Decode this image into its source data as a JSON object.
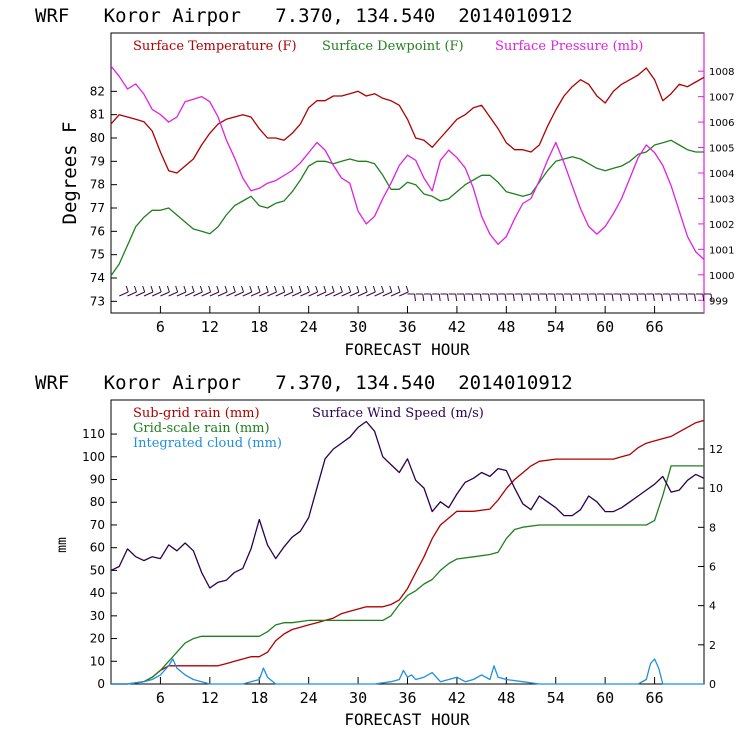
{
  "chart_data": [
    {
      "type": "line",
      "title": "WRF   Koror Airpor   7.370, 134.540  2014010912",
      "xlabel": "FORECAST HOUR",
      "ylabel": "Degrees F",
      "xlim": [
        0,
        72
      ],
      "ylim": [
        72.5,
        84.5
      ],
      "y2lim": [
        998.5,
        1009.5
      ],
      "x_ticks": [
        "6",
        "12",
        "18",
        "24",
        "30",
        "36",
        "42",
        "48",
        "54",
        "60",
        "66"
      ],
      "y_ticks": [
        "73",
        "74",
        "75",
        "76",
        "77",
        "78",
        "79",
        "80",
        "81",
        "82"
      ],
      "y2_ticks": [
        "999",
        "1000",
        "1001",
        "1002",
        "1003",
        "1004",
        "1005",
        "1006",
        "1007",
        "1008"
      ],
      "series": [
        {
          "name": "Surface Temperature (F)",
          "color": "#b00000",
          "axis": "left",
          "x": [
            0,
            1,
            2,
            3,
            4,
            5,
            6,
            7,
            8,
            9,
            10,
            11,
            12,
            13,
            14,
            15,
            16,
            17,
            18,
            19,
            20,
            21,
            22,
            23,
            24,
            25,
            26,
            27,
            28,
            29,
            30,
            31,
            32,
            33,
            34,
            35,
            36,
            37,
            38,
            39,
            40,
            41,
            42,
            43,
            44,
            45,
            46,
            47,
            48,
            49,
            50,
            51,
            52,
            53,
            54,
            55,
            56,
            57,
            58,
            59,
            60,
            61,
            62,
            63,
            64,
            65,
            66,
            67,
            68,
            69,
            70,
            71,
            72
          ],
          "y": [
            80.6,
            81.0,
            80.9,
            80.8,
            80.7,
            80.3,
            79.4,
            78.6,
            78.5,
            78.8,
            79.1,
            79.7,
            80.2,
            80.6,
            80.8,
            80.9,
            81.0,
            80.9,
            80.4,
            80.0,
            80.0,
            79.9,
            80.2,
            80.6,
            81.3,
            81.6,
            81.6,
            81.8,
            81.8,
            81.9,
            82.0,
            81.8,
            81.9,
            81.7,
            81.6,
            81.4,
            80.8,
            80.0,
            79.9,
            79.6,
            80.0,
            80.4,
            80.8,
            81.0,
            81.3,
            81.4,
            80.9,
            80.4,
            79.8,
            79.5,
            79.5,
            79.4,
            79.7,
            80.5,
            81.2,
            81.8,
            82.2,
            82.5,
            82.3,
            81.8,
            81.5,
            82.0,
            82.3,
            82.5,
            82.7,
            83.0,
            82.5,
            81.6,
            81.9,
            82.3,
            82.2,
            82.4,
            82.6
          ]
        },
        {
          "name": "Surface Dewpoint (F)",
          "color": "#208020",
          "axis": "left",
          "x": [
            0,
            1,
            2,
            3,
            4,
            5,
            6,
            7,
            8,
            9,
            10,
            11,
            12,
            13,
            14,
            15,
            16,
            17,
            18,
            19,
            20,
            21,
            22,
            23,
            24,
            25,
            26,
            27,
            28,
            29,
            30,
            31,
            32,
            33,
            34,
            35,
            36,
            37,
            38,
            39,
            40,
            41,
            42,
            43,
            44,
            45,
            46,
            47,
            48,
            49,
            50,
            51,
            52,
            53,
            54,
            55,
            56,
            57,
            58,
            59,
            60,
            61,
            62,
            63,
            64,
            65,
            66,
            67,
            68,
            69,
            70,
            71,
            72
          ],
          "y": [
            74.1,
            74.6,
            75.4,
            76.2,
            76.6,
            76.9,
            76.9,
            77.0,
            76.7,
            76.4,
            76.1,
            76.0,
            75.9,
            76.2,
            76.7,
            77.1,
            77.3,
            77.5,
            77.1,
            77.0,
            77.2,
            77.3,
            77.7,
            78.2,
            78.8,
            79.0,
            79.0,
            78.9,
            79.0,
            79.1,
            79.0,
            79.0,
            78.9,
            78.4,
            77.8,
            77.8,
            78.1,
            78.0,
            77.6,
            77.5,
            77.3,
            77.4,
            77.7,
            78.0,
            78.2,
            78.4,
            78.4,
            78.1,
            77.7,
            77.6,
            77.5,
            77.6,
            78.1,
            78.6,
            79.0,
            79.1,
            79.2,
            79.1,
            78.9,
            78.7,
            78.6,
            78.7,
            78.8,
            79.0,
            79.3,
            79.4,
            79.7,
            79.8,
            79.9,
            79.7,
            79.5,
            79.4,
            79.4
          ]
        },
        {
          "name": "Surface Pressure (mb)",
          "color": "#e020e0",
          "axis": "right",
          "x": [
            0,
            1,
            2,
            3,
            4,
            5,
            6,
            7,
            8,
            9,
            10,
            11,
            12,
            13,
            14,
            15,
            16,
            17,
            18,
            19,
            20,
            21,
            22,
            23,
            24,
            25,
            26,
            27,
            28,
            29,
            30,
            31,
            32,
            33,
            34,
            35,
            36,
            37,
            38,
            39,
            40,
            41,
            42,
            43,
            44,
            45,
            46,
            47,
            48,
            49,
            50,
            51,
            52,
            53,
            54,
            55,
            56,
            57,
            58,
            59,
            60,
            61,
            62,
            63,
            64,
            65,
            66,
            67,
            68,
            69,
            70,
            71,
            72
          ],
          "y": [
            1008.2,
            1007.8,
            1007.3,
            1007.5,
            1007.1,
            1006.5,
            1006.3,
            1006.0,
            1006.2,
            1006.8,
            1006.9,
            1007.0,
            1006.8,
            1006.2,
            1005.3,
            1004.6,
            1003.8,
            1003.3,
            1003.4,
            1003.6,
            1003.7,
            1003.9,
            1004.1,
            1004.4,
            1004.8,
            1005.2,
            1004.9,
            1004.3,
            1003.8,
            1003.6,
            1002.5,
            1002.0,
            1002.3,
            1003.0,
            1003.6,
            1004.3,
            1004.7,
            1004.5,
            1003.8,
            1003.3,
            1004.5,
            1004.9,
            1004.6,
            1004.2,
            1003.4,
            1002.3,
            1001.6,
            1001.2,
            1001.5,
            1002.2,
            1002.8,
            1003.0,
            1003.7,
            1004.5,
            1005.2,
            1004.4,
            1003.5,
            1002.6,
            1001.9,
            1001.6,
            1001.9,
            1002.4,
            1003.0,
            1003.8,
            1004.6,
            1005.1,
            1004.8,
            1004.3,
            1003.5,
            1002.5,
            1001.5,
            1000.9,
            1000.6
          ]
        }
      ]
    },
    {
      "type": "line",
      "title": "WRF   Koror Airpor   7.370, 134.540  2014010912",
      "xlabel": "FORECAST HOUR",
      "ylabel": "mm",
      "xlim": [
        0,
        72
      ],
      "ylim": [
        0,
        125
      ],
      "y2lim": [
        0,
        14.5
      ],
      "x_ticks": [
        "6",
        "12",
        "18",
        "24",
        "30",
        "36",
        "42",
        "48",
        "54",
        "60",
        "66"
      ],
      "y_ticks": [
        "0",
        "10",
        "20",
        "30",
        "40",
        "50",
        "60",
        "70",
        "80",
        "90",
        "100",
        "110"
      ],
      "y2_ticks": [
        "0",
        "2",
        "4",
        "6",
        "8",
        "10",
        "12"
      ],
      "series": [
        {
          "name": "Sub-grid rain (mm)",
          "color": "#b00000",
          "axis": "left",
          "x": [
            0,
            2,
            4,
            5,
            6,
            7,
            8,
            10,
            12,
            13,
            14,
            15,
            16,
            17,
            18,
            19,
            20,
            21,
            22,
            23,
            24,
            25,
            26,
            27,
            28,
            29,
            30,
            31,
            32,
            33,
            34,
            35,
            36,
            37,
            38,
            39,
            40,
            41,
            42,
            44,
            46,
            47,
            48,
            49,
            50,
            51,
            52,
            54,
            56,
            58,
            60,
            61,
            62,
            63,
            64,
            65,
            66,
            67,
            68,
            69,
            70,
            71,
            72
          ],
          "y": [
            0,
            0,
            1,
            3,
            6,
            8,
            8,
            8,
            8,
            8,
            9,
            10,
            11,
            12,
            12,
            14,
            19,
            22,
            24,
            25,
            26,
            27,
            28,
            29,
            31,
            32,
            33,
            34,
            34,
            34,
            35,
            37,
            42,
            49,
            56,
            64,
            70,
            73,
            76,
            76,
            77,
            81,
            86,
            90,
            93,
            96,
            98,
            99,
            99,
            99,
            99,
            99,
            100,
            101,
            104,
            106,
            107,
            108,
            109,
            111,
            113,
            115,
            116
          ]
        },
        {
          "name": "Grid-scale rain (mm)",
          "color": "#208020",
          "axis": "left",
          "x": [
            0,
            2,
            4,
            5,
            6,
            7,
            8,
            9,
            10,
            11,
            12,
            14,
            16,
            18,
            19,
            20,
            21,
            22,
            24,
            26,
            28,
            30,
            32,
            33,
            34,
            35,
            36,
            37,
            38,
            39,
            40,
            41,
            42,
            44,
            46,
            47,
            48,
            49,
            50,
            52,
            54,
            56,
            58,
            60,
            62,
            63,
            64,
            65,
            66,
            67,
            68,
            69,
            70,
            72
          ],
          "y": [
            0,
            0,
            1,
            3,
            6,
            10,
            14,
            18,
            20,
            21,
            21,
            21,
            21,
            21,
            23,
            26,
            27,
            27,
            28,
            28,
            28,
            28,
            28,
            28,
            30,
            35,
            39,
            41,
            44,
            46,
            50,
            53,
            55,
            56,
            57,
            58,
            64,
            68,
            69,
            70,
            70,
            70,
            70,
            70,
            70,
            70,
            70,
            70,
            72,
            83,
            96,
            96,
            96,
            96
          ]
        },
        {
          "name": "Integrated cloud (mm)",
          "color": "#1f8fe0",
          "axis": "left",
          "x": [
            0,
            2,
            4,
            5,
            6,
            7,
            7.5,
            8,
            9,
            10,
            11,
            12,
            14,
            16,
            17,
            18,
            18.5,
            19,
            20,
            24,
            28,
            32,
            34,
            35,
            35.5,
            36,
            36.5,
            37,
            38,
            39,
            40,
            41,
            42,
            43,
            44,
            45,
            46,
            46.5,
            47,
            48,
            50,
            52,
            56,
            60,
            64,
            65,
            65.5,
            66,
            66.5,
            67,
            68,
            70,
            72
          ],
          "y": [
            0,
            0,
            1,
            2,
            4,
            8,
            11,
            7,
            4,
            2,
            1,
            0,
            0,
            0,
            1,
            2,
            7,
            3,
            0,
            0,
            0,
            0,
            1,
            2,
            6,
            3,
            4,
            2,
            3,
            5,
            1,
            2,
            3,
            1,
            2,
            4,
            2,
            8,
            3,
            2,
            1,
            0,
            0,
            0,
            0,
            2,
            9,
            11,
            7,
            0,
            0,
            0,
            0
          ]
        },
        {
          "name": "Surface Wind Speed (m/s)",
          "color": "#2a0050",
          "axis": "right",
          "x": [
            0,
            1,
            2,
            3,
            4,
            5,
            6,
            7,
            8,
            9,
            10,
            11,
            12,
            13,
            14,
            15,
            16,
            17,
            18,
            19,
            20,
            21,
            22,
            23,
            24,
            25,
            26,
            27,
            28,
            29,
            30,
            31,
            32,
            33,
            34,
            35,
            36,
            37,
            38,
            39,
            40,
            41,
            42,
            43,
            44,
            45,
            46,
            47,
            48,
            49,
            50,
            51,
            52,
            53,
            54,
            55,
            56,
            57,
            58,
            59,
            60,
            61,
            62,
            63,
            64,
            65,
            66,
            67,
            68,
            69,
            70,
            71,
            72
          ],
          "y": [
            5.8,
            6.0,
            6.9,
            6.5,
            6.3,
            6.5,
            6.4,
            7.1,
            6.8,
            7.2,
            6.8,
            5.7,
            4.9,
            5.2,
            5.3,
            5.7,
            5.9,
            6.9,
            8.4,
            7.1,
            6.4,
            7.0,
            7.5,
            7.8,
            8.5,
            10.0,
            11.5,
            12.0,
            12.3,
            12.6,
            13.1,
            13.4,
            12.9,
            11.6,
            11.2,
            10.8,
            11.5,
            10.4,
            10.0,
            8.8,
            9.3,
            9.0,
            9.7,
            10.3,
            10.5,
            10.8,
            10.6,
            11.0,
            10.9,
            10.0,
            9.2,
            8.9,
            9.6,
            9.3,
            9.0,
            8.6,
            8.6,
            8.9,
            9.6,
            9.3,
            8.8,
            8.8,
            9.0,
            9.3,
            9.6,
            9.9,
            10.2,
            10.6,
            9.8,
            9.9,
            10.4,
            10.7,
            10.5
          ]
        }
      ]
    }
  ]
}
